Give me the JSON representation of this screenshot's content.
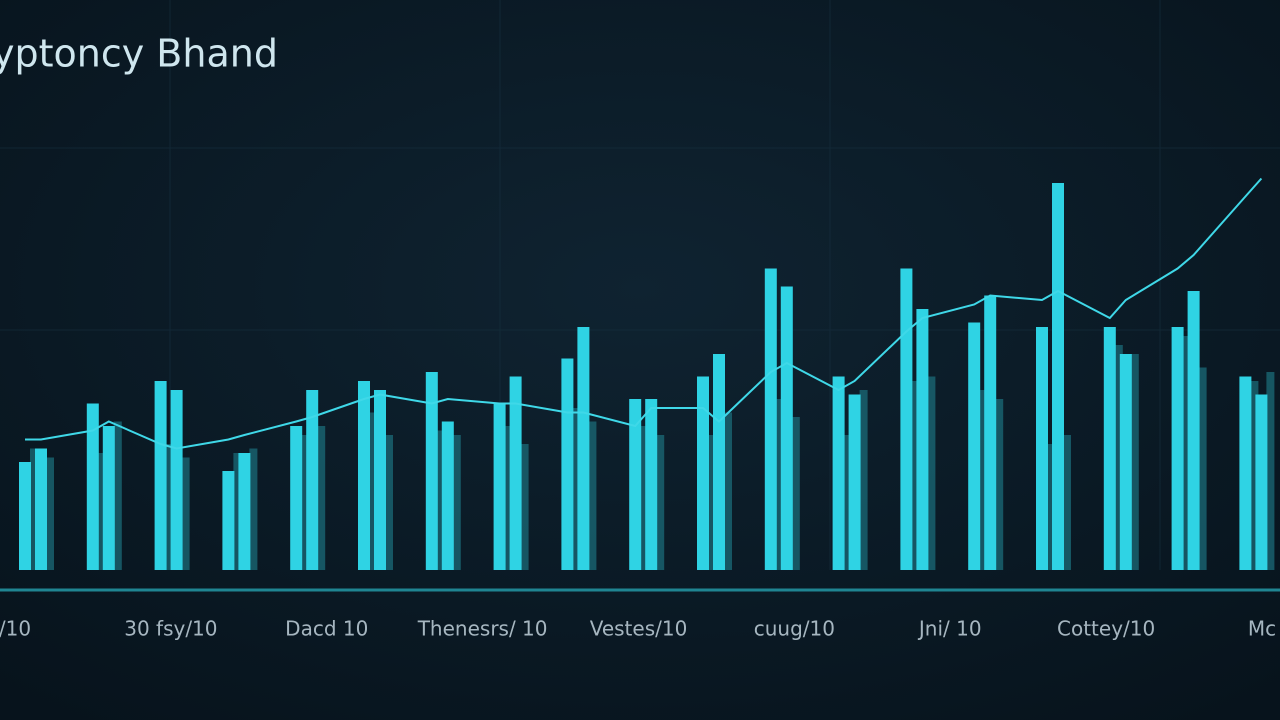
{
  "chart_data": {
    "type": "bar",
    "title": "yptoncy Bhand",
    "x_labels": [
      "/10",
      "30 fsy/10",
      "Dacd 10",
      "Thenesrs/ 10",
      "Vestes/10",
      "cuug/10",
      "Jni/ 10",
      "Cottey/10",
      "Mc"
    ],
    "categories": [
      null,
      null,
      null,
      null,
      null,
      null,
      null,
      null,
      null,
      null,
      null,
      null,
      null,
      null,
      null,
      null,
      null,
      null,
      null,
      null,
      null,
      null,
      null,
      null,
      null,
      null,
      null,
      null,
      null,
      null,
      null,
      null,
      null,
      null,
      null,
      null,
      null,
      null
    ],
    "ylim": [
      0,
      100
    ],
    "series": [
      {
        "type": "bar",
        "color": "#1b6b78",
        "values": [
          27,
          25,
          26,
          33,
          28,
          25,
          26,
          27,
          30,
          32,
          35,
          30,
          31,
          30,
          32,
          28,
          36,
          33,
          32,
          30,
          30,
          35,
          38,
          34,
          30,
          40,
          42,
          43,
          40,
          38,
          28,
          30,
          50,
          48,
          52,
          45,
          42,
          44
        ]
      },
      {
        "type": "bar",
        "color": "#2fd3e4",
        "values": [
          24,
          27,
          37,
          32,
          42,
          40,
          22,
          26,
          32,
          40,
          42,
          40,
          44,
          33,
          37,
          43,
          47,
          54,
          38,
          38,
          43,
          48,
          67,
          63,
          43,
          39,
          67,
          58,
          55,
          61,
          54,
          86,
          54,
          48,
          54,
          62,
          43,
          39
        ]
      },
      {
        "type": "line",
        "color": "#3fd8e8",
        "values": [
          29,
          29,
          31,
          33,
          28,
          27,
          29,
          30,
          33,
          34,
          38,
          39,
          37,
          38,
          37,
          37,
          35,
          35,
          32,
          36,
          36,
          33,
          44,
          46,
          40,
          42,
          53,
          56,
          59,
          61,
          60,
          62,
          56,
          60,
          67,
          70,
          83,
          87
        ]
      }
    ]
  }
}
